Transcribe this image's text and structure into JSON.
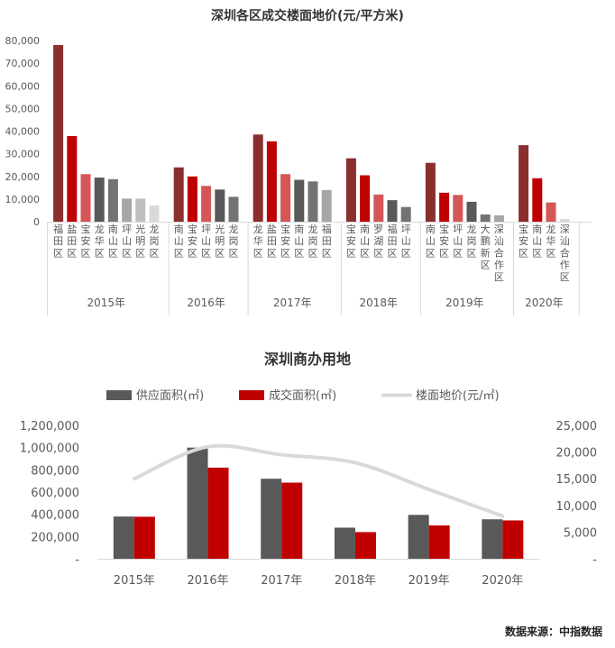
{
  "source_text": "数据来源：中指数据",
  "chart_data": [
    {
      "type": "bar",
      "title": "深圳各区成交楼面地价(元/平方米)",
      "ylim": [
        0,
        80000
      ],
      "yticks": [
        "0",
        "10,000",
        "20,000",
        "30,000",
        "40,000",
        "50,000",
        "60,000",
        "70,000",
        "80,000"
      ],
      "grid": false,
      "legend": "none",
      "groups": [
        {
          "year": "2015年",
          "bars": [
            {
              "district": "福田区",
              "value": 78000,
              "color": "#8B2E2E"
            },
            {
              "district": "盐田区",
              "value": 37800,
              "color": "#C00000"
            },
            {
              "district": "宝安区",
              "value": 21000,
              "color": "#D45656"
            },
            {
              "district": "龙华区",
              "value": 19500,
              "color": "#595959"
            },
            {
              "district": "南山区",
              "value": 18800,
              "color": "#737373"
            },
            {
              "district": "坪山区",
              "value": 10200,
              "color": "#A6A6A6"
            },
            {
              "district": "光明区",
              "value": 10200,
              "color": "#BFBFBF"
            },
            {
              "district": "龙岗区",
              "value": 7200,
              "color": "#D9D9D9"
            }
          ]
        },
        {
          "year": "2016年",
          "bars": [
            {
              "district": "南山区",
              "value": 24000,
              "color": "#8B2E2E"
            },
            {
              "district": "宝安区",
              "value": 20000,
              "color": "#C00000"
            },
            {
              "district": "坪山区",
              "value": 15800,
              "color": "#D45656"
            },
            {
              "district": "光明区",
              "value": 14200,
              "color": "#595959"
            },
            {
              "district": "龙岗区",
              "value": 11000,
              "color": "#737373"
            }
          ]
        },
        {
          "year": "2017年",
          "bars": [
            {
              "district": "龙华区",
              "value": 38500,
              "color": "#8B2E2E"
            },
            {
              "district": "盐田区",
              "value": 35500,
              "color": "#C00000"
            },
            {
              "district": "宝安区",
              "value": 21000,
              "color": "#D45656"
            },
            {
              "district": "南山区",
              "value": 18500,
              "color": "#595959"
            },
            {
              "district": "龙岗区",
              "value": 17800,
              "color": "#737373"
            },
            {
              "district": "福田区",
              "value": 14000,
              "color": "#A6A6A6"
            }
          ]
        },
        {
          "year": "2018年",
          "bars": [
            {
              "district": "宝安区",
              "value": 28000,
              "color": "#8B2E2E"
            },
            {
              "district": "南山区",
              "value": 20500,
              "color": "#C00000"
            },
            {
              "district": "罗湖区",
              "value": 12000,
              "color": "#D45656"
            },
            {
              "district": "福田区",
              "value": 9500,
              "color": "#595959"
            },
            {
              "district": "坪山区",
              "value": 6500,
              "color": "#737373"
            }
          ]
        },
        {
          "year": "2019年",
          "bars": [
            {
              "district": "南山区",
              "value": 26000,
              "color": "#8B2E2E"
            },
            {
              "district": "宝安区",
              "value": 12800,
              "color": "#C00000"
            },
            {
              "district": "坪山区",
              "value": 11800,
              "color": "#D45656"
            },
            {
              "district": "龙岗区",
              "value": 8800,
              "color": "#595959"
            },
            {
              "district": "大鹏新区",
              "value": 3200,
              "color": "#737373"
            },
            {
              "district": "深汕合作区",
              "value": 2800,
              "color": "#A6A6A6"
            }
          ]
        },
        {
          "year": "2020年",
          "bars": [
            {
              "district": "宝安区",
              "value": 33800,
              "color": "#8B2E2E"
            },
            {
              "district": "南山区",
              "value": 19200,
              "color": "#C00000"
            },
            {
              "district": "龙华区",
              "value": 8500,
              "color": "#D45656"
            },
            {
              "district": "深汕合作区",
              "value": 1200,
              "color": "#D9D9D9"
            }
          ]
        }
      ]
    },
    {
      "type": "bar",
      "title": "深圳商办用地",
      "categories": [
        "2015年",
        "2016年",
        "2017年",
        "2018年",
        "2019年",
        "2020年"
      ],
      "ylim": [
        0,
        1200000
      ],
      "yticks": [
        "-",
        "200,000",
        "400,000",
        "600,000",
        "800,000",
        "1,000,000",
        "1,200,000"
      ],
      "y2lim": [
        0,
        25000
      ],
      "y2ticks": [
        "-",
        "5,000",
        "10,000",
        "15,000",
        "20,000",
        "25,000"
      ],
      "grid": false,
      "legend": "top",
      "series": [
        {
          "name": "供应面积(㎡)",
          "type": "bar",
          "axis": "left",
          "color": "#595959",
          "values": [
            380000,
            1000000,
            720000,
            280000,
            395000,
            355000
          ]
        },
        {
          "name": "成交面积(㎡)",
          "type": "bar",
          "axis": "left",
          "color": "#C00000",
          "values": [
            378000,
            820000,
            685000,
            240000,
            300000,
            345000
          ]
        },
        {
          "name": "楼面地价(元/㎡)",
          "type": "line",
          "axis": "right",
          "color": "#D9D9D9",
          "values": [
            15000,
            21000,
            19500,
            18000,
            13000,
            8000
          ]
        }
      ]
    }
  ]
}
